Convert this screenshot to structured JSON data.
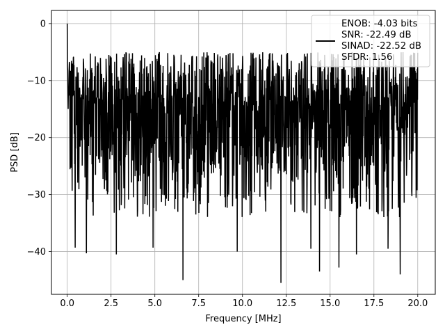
{
  "chart_data": {
    "type": "line",
    "title": "",
    "xlabel": "Frequency [MHz]",
    "ylabel": "PSD [dB]",
    "xlim": [
      -0.9,
      21.0
    ],
    "ylim": [
      -47.5,
      2.3
    ],
    "xticks": [
      0.0,
      2.5,
      5.0,
      7.5,
      10.0,
      12.5,
      15.0,
      17.5,
      20.0
    ],
    "xtick_labels": [
      "0.0",
      "2.5",
      "5.0",
      "7.5",
      "10.0",
      "12.5",
      "15.0",
      "17.5",
      "20.0"
    ],
    "yticks": [
      0,
      -10,
      -20,
      -30,
      -40
    ],
    "ytick_labels": [
      "0",
      "−10",
      "−20",
      "−30",
      "−40"
    ],
    "grid": true,
    "legend": {
      "placement": "top-right",
      "entries": [
        "ENOB: -4.03 bits",
        "SNR: -22.49 dB",
        "SINAD: -22.52 dB",
        "SFDR: 1.56"
      ]
    },
    "series": [
      {
        "color": "#000000",
        "x_range": [
          0.0,
          20.0
        ],
        "samples": 1500,
        "peak_value": 0.0,
        "mean_level": -18,
        "spread_upper": -5,
        "spread_lower": -34,
        "notable_minima": [
          {
            "x": 6.6,
            "y": -45.0
          },
          {
            "x": 12.2,
            "y": -45.5
          },
          {
            "x": 19.0,
            "y": -44.0
          },
          {
            "x": 14.4,
            "y": -43.5
          },
          {
            "x": 15.5,
            "y": -42.8
          },
          {
            "x": 2.8,
            "y": -40.5
          },
          {
            "x": 1.1,
            "y": -40.3
          },
          {
            "x": 0.45,
            "y": -39.3
          },
          {
            "x": 4.9,
            "y": -39.3
          },
          {
            "x": 9.7,
            "y": -40.0
          },
          {
            "x": 13.9,
            "y": -39.5
          },
          {
            "x": 16.5,
            "y": -40.5
          },
          {
            "x": 18.3,
            "y": -39.5
          }
        ]
      }
    ]
  }
}
